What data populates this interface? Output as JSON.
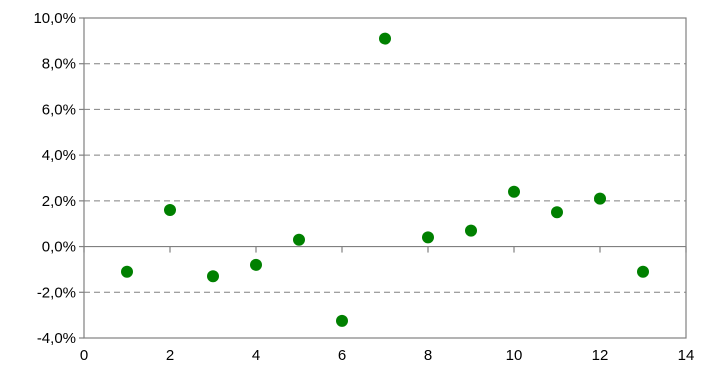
{
  "chart_data": {
    "type": "scatter",
    "title": "",
    "xlabel": "",
    "ylabel": "",
    "xlim": [
      0,
      14
    ],
    "ylim": [
      -4.0,
      10.0
    ],
    "x_ticks": [
      0,
      2,
      4,
      6,
      8,
      10,
      12,
      14
    ],
    "x_tick_labels": [
      "0",
      "2",
      "4",
      "6",
      "8",
      "10",
      "12",
      "14"
    ],
    "y_ticks": [
      -4,
      -2,
      0,
      2,
      4,
      6,
      8,
      10
    ],
    "y_tick_labels": [
      "-4,0%",
      "-2,0%",
      "0,0%",
      "2,0%",
      "4,0%",
      "6,0%",
      "8,0%",
      "10,0%"
    ],
    "grid": "horizontal dashed",
    "legend": "none",
    "series": [
      {
        "color": "#008000",
        "x": [
          1,
          2,
          3,
          4,
          5,
          6,
          7,
          8,
          9,
          10,
          11,
          12,
          13
        ],
        "y": [
          -1.1,
          1.6,
          -1.3,
          -0.8,
          0.3,
          -3.25,
          9.1,
          0.4,
          0.7,
          2.4,
          1.5,
          2.1,
          -1.1
        ]
      }
    ]
  }
}
